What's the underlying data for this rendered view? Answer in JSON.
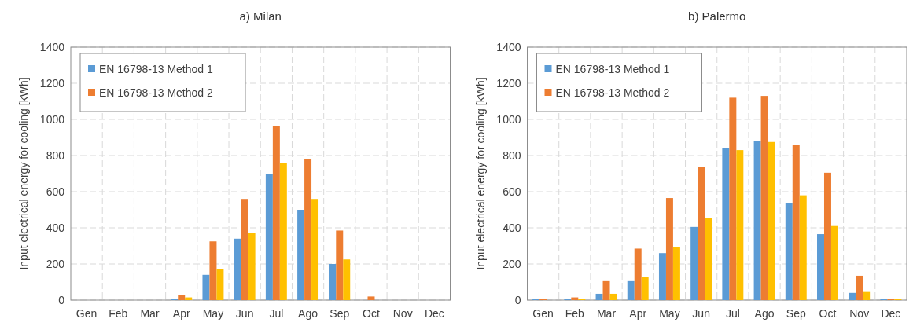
{
  "chart_data": [
    {
      "type": "bar",
      "title": "a) Milan",
      "ylabel": "Input electrical energy for cooling [kWh]",
      "categories": [
        "Gen",
        "Feb",
        "Mar",
        "Apr",
        "May",
        "Jun",
        "Jul",
        "Ago",
        "Sep",
        "Oct",
        "Nov",
        "Dec"
      ],
      "series": [
        {
          "name": "EN 16798-13 Method 1",
          "color": "#5b9bd5",
          "values": [
            0,
            0,
            0,
            5,
            140,
            340,
            700,
            500,
            200,
            0,
            0,
            0
          ]
        },
        {
          "name": "EN 16798-13 Method 2",
          "color": "#ed7d31",
          "values": [
            0,
            0,
            0,
            30,
            325,
            560,
            965,
            780,
            385,
            20,
            0,
            0
          ]
        },
        {
          "color": "#ffc000",
          "values": [
            0,
            0,
            0,
            15,
            170,
            370,
            760,
            560,
            225,
            0,
            0,
            0
          ]
        }
      ],
      "ylim": [
        0,
        1400
      ],
      "yticks": [
        0,
        200,
        400,
        600,
        800,
        1000,
        1200,
        1400
      ],
      "grid": true,
      "legend": "top left"
    },
    {
      "type": "bar",
      "title": "b) Palermo",
      "ylabel": "Input electrical energy for cooling [kWh]",
      "categories": [
        "Gen",
        "Feb",
        "Mar",
        "Apr",
        "May",
        "Jun",
        "Jul",
        "Ago",
        "Sep",
        "Oct",
        "Nov",
        "Dec"
      ],
      "series": [
        {
          "name": "EN 16798-13 Method 1",
          "color": "#5b9bd5",
          "values": [
            5,
            5,
            35,
            105,
            260,
            405,
            840,
            880,
            535,
            365,
            40,
            5
          ]
        },
        {
          "name": "EN 16798-13 Method 2",
          "color": "#ed7d31",
          "values": [
            5,
            15,
            105,
            285,
            565,
            735,
            1120,
            1130,
            860,
            705,
            135,
            5
          ]
        },
        {
          "color": "#ffc000",
          "values": [
            0,
            5,
            35,
            130,
            295,
            455,
            830,
            875,
            580,
            410,
            45,
            5
          ]
        }
      ],
      "ylim": [
        0,
        1400
      ],
      "yticks": [
        0,
        200,
        400,
        600,
        800,
        1000,
        1200,
        1400
      ],
      "grid": true,
      "legend": "top left"
    }
  ]
}
